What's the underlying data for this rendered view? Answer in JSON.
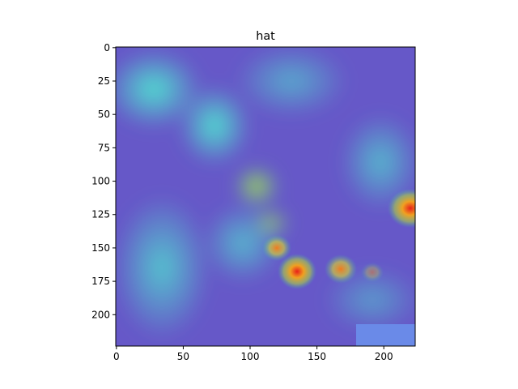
{
  "chart_data": {
    "type": "image",
    "title": "hat",
    "xlim": [
      -0.5,
      223.5
    ],
    "ylim": [
      223.5,
      -0.5
    ],
    "xticks": [
      0,
      50,
      100,
      150,
      200
    ],
    "yticks": [
      0,
      25,
      50,
      75,
      100,
      125,
      150,
      175,
      200
    ]
  }
}
